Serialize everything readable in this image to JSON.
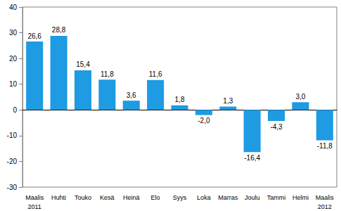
{
  "chart_data": {
    "type": "bar",
    "categories": [
      "Maalis\n2011",
      "Huhti",
      "Touko",
      "Kesä",
      "Heinä",
      "Elo",
      "Syys",
      "Loka",
      "Marras",
      "Joulu",
      "Tammi",
      "Helmi",
      "Maalis\n2012"
    ],
    "values": [
      26.6,
      28.8,
      15.4,
      11.8,
      3.6,
      11.6,
      1.8,
      -2.0,
      1.3,
      -16.4,
      -4.3,
      3.0,
      -11.8
    ],
    "value_labels": [
      "26,6",
      "28,8",
      "15,4",
      "11,8",
      "3,6",
      "11,6",
      "1,8",
      "-2,0",
      "1,3",
      "-16,4",
      "-4,3",
      "3,0",
      "-11,8"
    ],
    "color": "#1e9be2",
    "ylim": [
      -30,
      40
    ],
    "yticks": [
      -30,
      -20,
      -10,
      0,
      10,
      20,
      30,
      40
    ],
    "grid": false,
    "data_labels": true
  }
}
